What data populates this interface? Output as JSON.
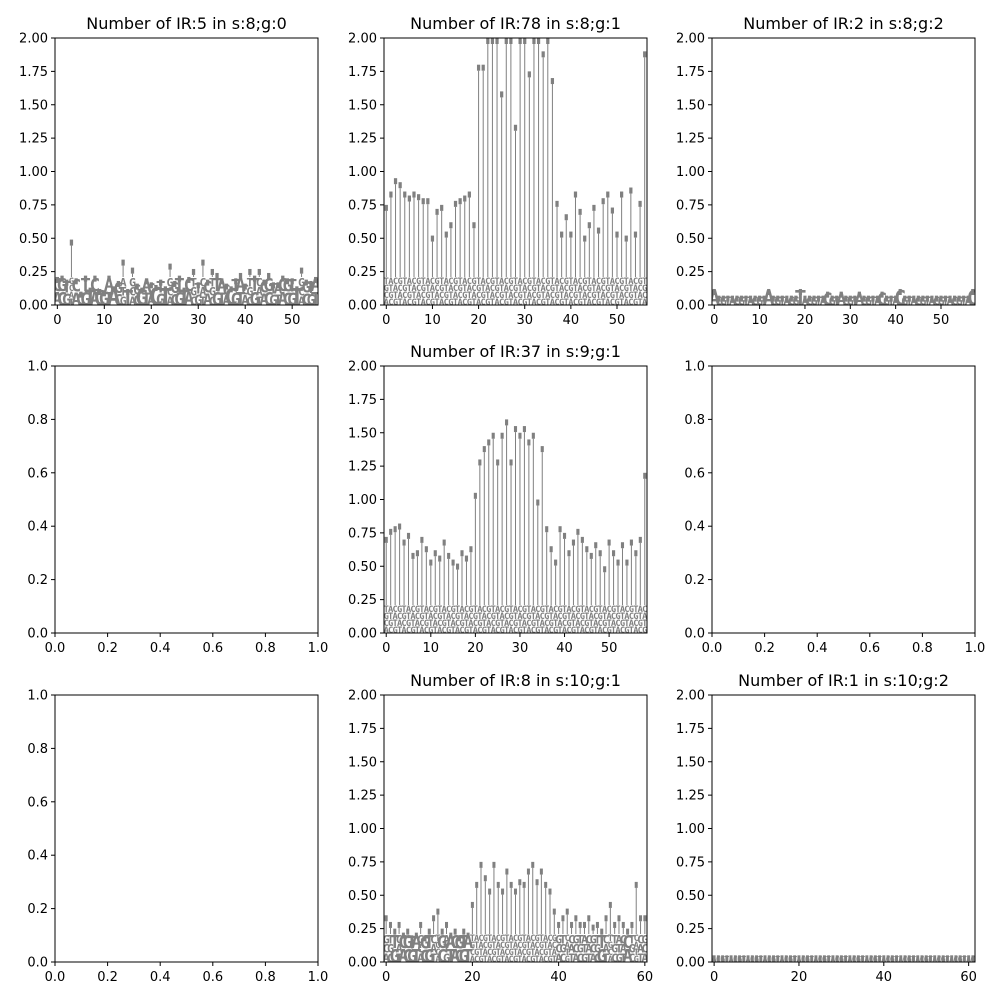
{
  "chart_data": [
    {
      "type": "logo",
      "title": "Number of IR:5 in s:8;g:0",
      "xlim": [
        -0.5,
        55.5
      ],
      "ylim": [
        0,
        2
      ],
      "xticks": [
        "0",
        "10",
        "20",
        "30",
        "40",
        "50"
      ],
      "yticks": [
        "0.00",
        "0.25",
        "0.50",
        "0.75",
        "1.00",
        "1.25",
        "1.50",
        "1.75",
        "2.00"
      ],
      "color": "#808080",
      "values": [
        0.21,
        0.22,
        0.19,
        0.49,
        0.2,
        0.1,
        0.22,
        0.13,
        0.22,
        0.12,
        0.11,
        0.22,
        0.14,
        0.18,
        0.34,
        0.12,
        0.28,
        0.16,
        0.13,
        0.2,
        0.17,
        0.15,
        0.19,
        0.14,
        0.31,
        0.18,
        0.22,
        0.13,
        0.21,
        0.27,
        0.17,
        0.34,
        0.19,
        0.27,
        0.24,
        0.2,
        0.16,
        0.14,
        0.2,
        0.24,
        0.16,
        0.27,
        0.22,
        0.27,
        0.19,
        0.24,
        0.17,
        0.17,
        0.22,
        0.2,
        0.2,
        0.14,
        0.28,
        0.19,
        0.18,
        0.21
      ]
    },
    {
      "type": "logo",
      "title": "Number of IR:78 in s:8;g:1",
      "xlim": [
        -0.5,
        56.5
      ],
      "ylim": [
        0,
        2
      ],
      "xticks": [
        "0",
        "10",
        "20",
        "30",
        "40",
        "50"
      ],
      "yticks": [
        "0.00",
        "0.25",
        "0.50",
        "0.75",
        "1.00",
        "1.25",
        "1.50",
        "1.75",
        "2.00"
      ],
      "color": "#808080",
      "values": [
        0.75,
        0.85,
        0.95,
        0.92,
        0.85,
        0.82,
        0.85,
        0.83,
        0.8,
        0.8,
        0.52,
        0.72,
        0.75,
        0.55,
        0.62,
        0.78,
        0.8,
        0.82,
        0.85,
        0.62,
        1.8,
        1.8,
        2.0,
        2.0,
        2.0,
        1.6,
        2.0,
        2.0,
        1.35,
        2.0,
        2.0,
        1.75,
        2.0,
        2.0,
        1.9,
        2.0,
        1.7,
        0.78,
        0.55,
        0.68,
        0.55,
        0.85,
        0.72,
        0.52,
        0.62,
        0.75,
        0.58,
        0.8,
        0.85,
        0.73,
        0.55,
        0.85,
        0.52,
        0.88,
        0.55,
        0.78,
        1.9
      ]
    },
    {
      "type": "logo",
      "title": "Number of IR:2 in s:8;g:2",
      "xlim": [
        -0.5,
        57.5
      ],
      "ylim": [
        0,
        2
      ],
      "xticks": [
        "0",
        "10",
        "20",
        "30",
        "40",
        "50"
      ],
      "yticks": [
        "0.00",
        "0.25",
        "0.50",
        "0.75",
        "1.00",
        "1.25",
        "1.50",
        "1.75",
        "2.00"
      ],
      "color": "#808080",
      "values": [
        0.12,
        0.07,
        0.07,
        0.07,
        0.07,
        0.07,
        0.07,
        0.07,
        0.07,
        0.07,
        0.07,
        0.07,
        0.12,
        0.07,
        0.07,
        0.07,
        0.07,
        0.07,
        0.07,
        0.12,
        0.07,
        0.07,
        0.07,
        0.07,
        0.07,
        0.1,
        0.07,
        0.07,
        0.1,
        0.07,
        0.07,
        0.07,
        0.1,
        0.07,
        0.07,
        0.07,
        0.07,
        0.1,
        0.07,
        0.07,
        0.07,
        0.12,
        0.07,
        0.07,
        0.07,
        0.07,
        0.07,
        0.07,
        0.07,
        0.07,
        0.07,
        0.07,
        0.07,
        0.07,
        0.07,
        0.07,
        0.07,
        0.12
      ]
    },
    {
      "type": "empty",
      "title": "",
      "xlim": [
        0,
        1
      ],
      "ylim": [
        0,
        1
      ],
      "xticks": [
        "0.0",
        "0.2",
        "0.4",
        "0.6",
        "0.8",
        "1.0"
      ],
      "yticks": [
        "0.0",
        "0.2",
        "0.4",
        "0.6",
        "0.8",
        "1.0"
      ]
    },
    {
      "type": "logo",
      "title": "Number of IR:37 in s:9;g:1",
      "xlim": [
        -0.5,
        58.5
      ],
      "ylim": [
        0,
        2
      ],
      "xticks": [
        "0",
        "10",
        "20",
        "30",
        "40",
        "50"
      ],
      "yticks": [
        "0.00",
        "0.25",
        "0.50",
        "0.75",
        "1.00",
        "1.25",
        "1.50",
        "1.75",
        "2.00"
      ],
      "color": "#808080",
      "values": [
        0.72,
        0.78,
        0.8,
        0.82,
        0.7,
        0.75,
        0.6,
        0.62,
        0.72,
        0.65,
        0.55,
        0.62,
        0.58,
        0.7,
        0.6,
        0.55,
        0.52,
        0.62,
        0.58,
        0.65,
        1.05,
        1.3,
        1.4,
        1.45,
        1.5,
        1.3,
        1.5,
        1.6,
        1.3,
        1.55,
        1.5,
        1.55,
        1.45,
        1.5,
        1.0,
        1.4,
        0.8,
        0.65,
        0.55,
        0.8,
        0.75,
        0.62,
        0.7,
        0.78,
        0.72,
        0.65,
        0.6,
        0.68,
        0.62,
        0.5,
        0.7,
        0.62,
        0.55,
        0.68,
        0.55,
        0.7,
        0.62,
        0.72,
        1.2
      ]
    },
    {
      "type": "empty",
      "title": "",
      "xlim": [
        0,
        1
      ],
      "ylim": [
        0,
        1
      ],
      "xticks": [
        "0.0",
        "0.2",
        "0.4",
        "0.6",
        "0.8",
        "1.0"
      ],
      "yticks": [
        "0.0",
        "0.2",
        "0.4",
        "0.6",
        "0.8",
        "1.0"
      ]
    },
    {
      "type": "empty",
      "title": "",
      "xlim": [
        0,
        1
      ],
      "ylim": [
        0,
        1
      ],
      "xticks": [
        "0.0",
        "0.2",
        "0.4",
        "0.6",
        "0.8",
        "1.0"
      ],
      "yticks": [
        "0.0",
        "0.2",
        "0.4",
        "0.6",
        "0.8",
        "1.0"
      ]
    },
    {
      "type": "logo",
      "title": "Number of IR:8 in s:10;g:1",
      "xlim": [
        -0.5,
        60.5
      ],
      "ylim": [
        0,
        2
      ],
      "xticks": [
        "0",
        "20",
        "40",
        "60"
      ],
      "yticks": [
        "0.00",
        "0.25",
        "0.50",
        "0.75",
        "1.00",
        "1.25",
        "1.50",
        "1.75",
        "2.00"
      ],
      "color": "#808080",
      "values": [
        0.35,
        0.3,
        0.25,
        0.3,
        0.22,
        0.25,
        0.2,
        0.22,
        0.3,
        0.2,
        0.25,
        0.35,
        0.4,
        0.25,
        0.3,
        0.22,
        0.25,
        0.2,
        0.25,
        0.22,
        0.45,
        0.6,
        0.75,
        0.65,
        0.55,
        0.75,
        0.6,
        0.55,
        0.7,
        0.6,
        0.55,
        0.62,
        0.6,
        0.7,
        0.75,
        0.62,
        0.7,
        0.6,
        0.55,
        0.4,
        0.3,
        0.35,
        0.4,
        0.3,
        0.35,
        0.3,
        0.3,
        0.35,
        0.28,
        0.3,
        0.25,
        0.35,
        0.45,
        0.3,
        0.35,
        0.3,
        0.25,
        0.3,
        0.6,
        0.35,
        0.35
      ]
    },
    {
      "type": "logo",
      "title": "Number of IR:1 in s:10;g:2",
      "xlim": [
        -0.5,
        61.5
      ],
      "ylim": [
        0,
        2
      ],
      "xticks": [
        "0",
        "20",
        "40",
        "60"
      ],
      "yticks": [
        "0.00",
        "0.25",
        "0.50",
        "0.75",
        "1.00",
        "1.25",
        "1.50",
        "1.75",
        "2.00"
      ],
      "color": "#808080",
      "values": [
        0.05,
        0.05,
        0.05,
        0.05,
        0.05,
        0.05,
        0.05,
        0.05,
        0.05,
        0.05,
        0.05,
        0.05,
        0.05,
        0.05,
        0.05,
        0.05,
        0.05,
        0.05,
        0.05,
        0.05,
        0.05,
        0.05,
        0.05,
        0.05,
        0.05,
        0.05,
        0.05,
        0.05,
        0.05,
        0.05,
        0.05,
        0.05,
        0.05,
        0.05,
        0.05,
        0.05,
        0.05,
        0.05,
        0.05,
        0.05,
        0.05,
        0.05,
        0.05,
        0.05,
        0.05,
        0.05,
        0.05,
        0.05,
        0.05,
        0.05,
        0.05,
        0.05,
        0.05,
        0.05,
        0.05,
        0.05,
        0.05,
        0.05,
        0.05,
        0.05,
        0.05,
        0.05
      ]
    }
  ]
}
